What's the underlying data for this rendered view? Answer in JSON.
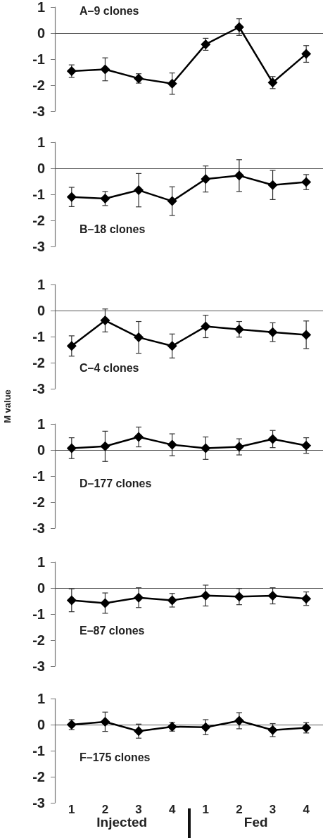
{
  "chart_data": [
    {
      "type": "line",
      "title": "A–9 clones",
      "categories": [
        "1",
        "2",
        "3",
        "4",
        "1",
        "2",
        "3",
        "4"
      ],
      "color": "#000000",
      "values": [
        -1.46,
        -1.39,
        -1.74,
        -1.94,
        -0.43,
        0.23,
        -1.9,
        -0.8
      ],
      "errors": [
        0.24,
        0.44,
        0.18,
        0.41,
        0.23,
        0.32,
        0.23,
        0.32
      ],
      "ylim": [
        -3,
        1
      ],
      "yticks": [
        -3,
        -2,
        -1,
        0,
        1
      ],
      "marker": "diamond",
      "tick_labels": "y",
      "ref_lines": [
        {
          "axis": "y",
          "value": 0
        }
      ]
    },
    {
      "type": "line",
      "title": "B–18 clones",
      "categories": [
        "1",
        "2",
        "3",
        "4",
        "1",
        "2",
        "3",
        "4"
      ],
      "color": "#000000",
      "values": [
        -1.1,
        -1.16,
        -0.84,
        -1.26,
        -0.41,
        -0.28,
        -0.64,
        -0.53
      ],
      "errors": [
        0.37,
        0.27,
        0.64,
        0.55,
        0.5,
        0.61,
        0.56,
        0.29
      ],
      "ylim": [
        -3,
        1
      ],
      "yticks": [
        -3,
        -2,
        -1,
        0,
        1
      ],
      "marker": "diamond",
      "tick_labels": "y",
      "ref_lines": [
        {
          "axis": "y",
          "value": 0
        }
      ]
    },
    {
      "type": "line",
      "title": "C–4 clones",
      "ylabel": "M value",
      "categories": [
        "1",
        "2",
        "3",
        "4",
        "1",
        "2",
        "3",
        "4"
      ],
      "color": "#000000",
      "values": [
        -1.36,
        -0.38,
        -1.03,
        -1.36,
        -0.61,
        -0.72,
        -0.83,
        -0.93
      ],
      "errors": [
        0.39,
        0.44,
        0.61,
        0.46,
        0.43,
        0.3,
        0.36,
        0.53
      ],
      "ylim": [
        -3,
        1
      ],
      "yticks": [
        -3,
        -2,
        -1,
        0,
        1
      ],
      "marker": "diamond",
      "tick_labels": "y",
      "ref_lines": [
        {
          "axis": "y",
          "value": 0
        }
      ]
    },
    {
      "type": "line",
      "title": "D–177 clones",
      "categories": [
        "1",
        "2",
        "3",
        "4",
        "1",
        "2",
        "3",
        "4"
      ],
      "color": "#000000",
      "values": [
        0.07,
        0.14,
        0.5,
        0.2,
        0.07,
        0.12,
        0.42,
        0.17
      ],
      "errors": [
        0.4,
        0.58,
        0.38,
        0.42,
        0.43,
        0.31,
        0.33,
        0.3
      ],
      "ylim": [
        -3,
        1
      ],
      "yticks": [
        -3,
        -2,
        -1,
        0,
        1
      ],
      "marker": "diamond",
      "tick_labels": "y",
      "ref_lines": [
        {
          "axis": "y",
          "value": 0
        }
      ]
    },
    {
      "type": "line",
      "title": "E–87 clones",
      "categories": [
        "1",
        "2",
        "3",
        "4",
        "1",
        "2",
        "3",
        "4"
      ],
      "color": "#000000",
      "values": [
        -0.47,
        -0.58,
        -0.37,
        -0.47,
        -0.29,
        -0.33,
        -0.3,
        -0.41
      ],
      "errors": [
        0.44,
        0.39,
        0.38,
        0.26,
        0.4,
        0.31,
        0.31,
        0.26
      ],
      "ylim": [
        -3,
        1
      ],
      "yticks": [
        -3,
        -2,
        -1,
        0,
        1
      ],
      "marker": "diamond",
      "tick_labels": "y",
      "ref_lines": [
        {
          "axis": "y",
          "value": 0
        }
      ]
    },
    {
      "type": "line",
      "title": "F–175 clones",
      "categories": [
        "1",
        "2",
        "3",
        "4",
        "1",
        "2",
        "3",
        "4"
      ],
      "color": "#000000",
      "values": [
        0,
        0.11,
        -0.25,
        -0.08,
        -0.1,
        0.15,
        -0.21,
        -0.12
      ],
      "errors": [
        0.19,
        0.37,
        0.27,
        0.17,
        0.29,
        0.31,
        0.25,
        0.2
      ],
      "ylim": [
        -3,
        1
      ],
      "yticks": [
        -3,
        -2,
        -1,
        0,
        1
      ],
      "marker": "diamond",
      "ref_lines": [
        {
          "axis": "y",
          "value": 0
        }
      ],
      "annotations": [
        "Injected",
        "Fed"
      ]
    }
  ]
}
